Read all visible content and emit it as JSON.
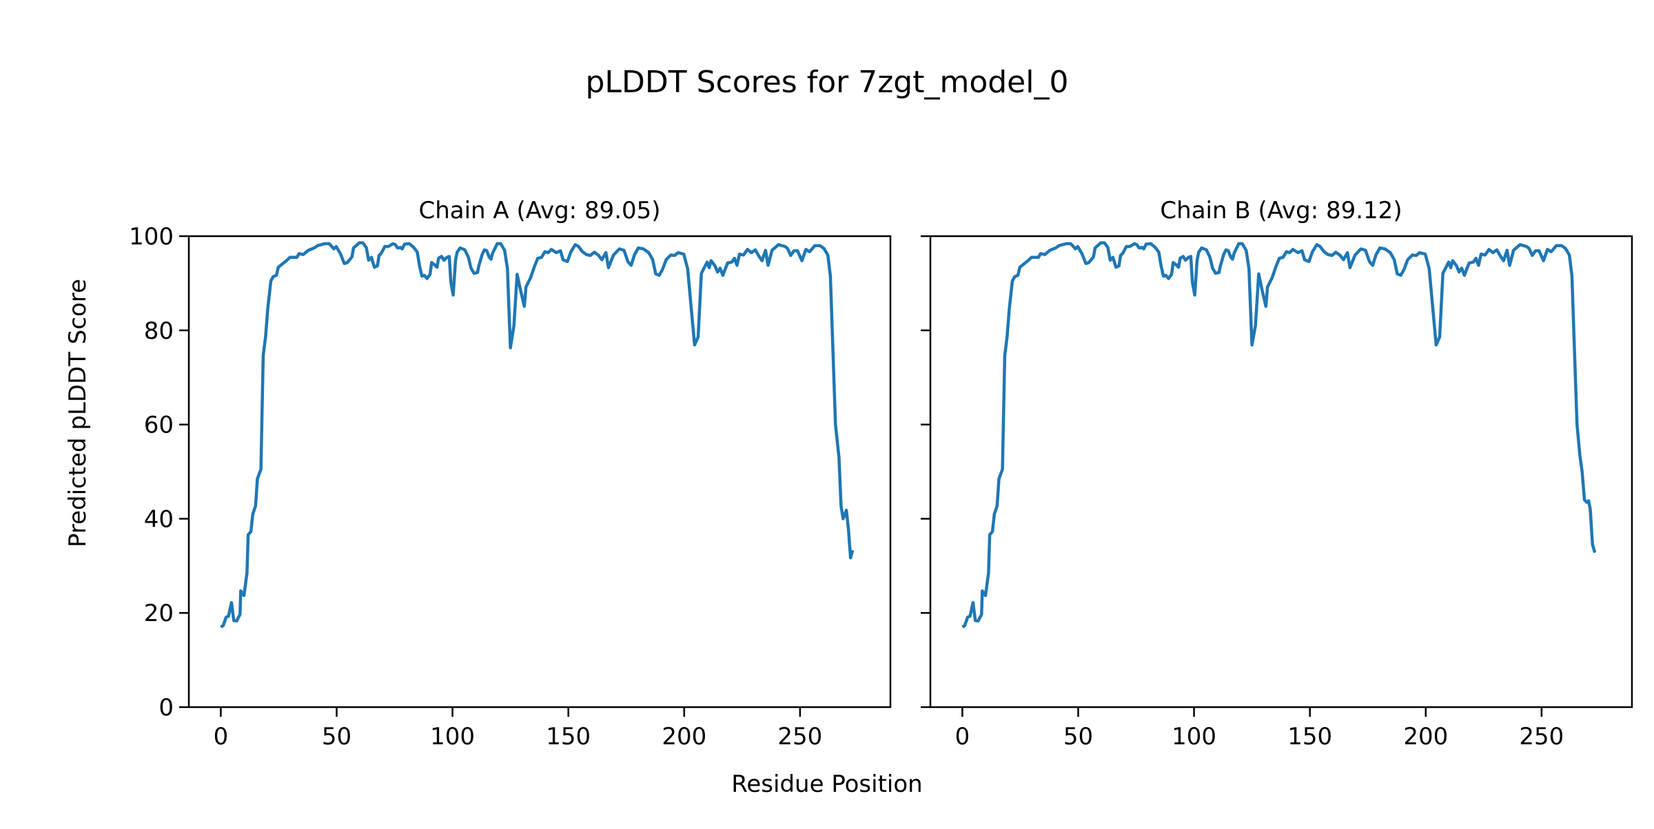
{
  "chart_data": {
    "type": "line",
    "title": "pLDDT Scores for 7zgt_model_0",
    "xlabel": "Residue Position",
    "ylabel": "Predicted pLDDT Score",
    "ylim": [
      0,
      100
    ],
    "xlim": [
      -13.8,
      289
    ],
    "xticks": [
      "0",
      "50",
      "100",
      "150",
      "200",
      "250"
    ],
    "yticks": [
      "0",
      "20",
      "40",
      "60",
      "80",
      "100"
    ],
    "shared_y": true,
    "grid": false,
    "line_color": "#1f77b4",
    "panels": [
      {
        "title": "Chain A (Avg: 89.05)",
        "x": [
          0,
          1,
          2.3,
          3.3,
          4.6,
          5.6,
          6.8,
          8.3,
          8.6,
          10,
          11.3,
          11.8,
          13,
          13.8,
          15,
          15.8,
          17.3,
          18.3,
          19.3,
          20.3,
          21.6,
          22.6,
          24,
          24.8,
          26.8,
          28.6,
          29.8,
          32.8,
          33.8,
          35.6,
          37.8,
          40.3,
          41.8,
          44.8,
          46.8,
          48.8,
          49.8,
          51.6,
          53.3,
          54.6,
          56.6,
          57.3,
          59.8,
          61.3,
          62.8,
          63.8,
          65,
          66.3,
          67.6,
          68.3,
          69.3,
          70.8,
          72.3,
          74.3,
          75.3,
          76.3,
          77.6,
          78.3,
          79.3,
          81.3,
          83.3,
          84.8,
          85.8,
          86.8,
          87.8,
          89,
          90.3,
          91,
          92.3,
          93.3,
          94,
          95.3,
          96.3,
          97.6,
          98.6,
          99.3,
          100.3,
          101.3,
          102,
          103.3,
          105.3,
          106.8,
          108,
          109.3,
          110.8,
          111.3,
          112.8,
          113.8,
          114.8,
          115.8,
          116.6,
          117.3,
          119.3,
          120.8,
          122.5,
          123.7,
          125,
          126.5,
          127.9,
          129.3,
          131,
          131.7,
          133.7,
          135.4,
          136.8,
          138.4,
          139.9,
          141.3,
          142.7,
          144.8,
          146.6,
          147.7,
          149.6,
          151.1,
          153,
          154.4,
          156.1,
          157.8,
          159.5,
          161.2,
          162.9,
          164.5,
          166.2,
          167.3,
          169.5,
          172,
          174,
          175.7,
          177.1,
          178.5,
          180.2,
          182.4,
          184.7,
          186.4,
          187.7,
          189.2,
          190.6,
          192.2,
          194.2,
          195.9,
          197.4,
          199.8,
          201.5,
          203.2,
          204.5,
          206,
          207.4,
          209.9,
          210.8,
          211.6,
          213.3,
          214.4,
          215.5,
          216.7,
          218.7,
          220.6,
          221.7,
          222.8,
          223.9,
          225.6,
          227.3,
          229,
          230.7,
          232.3,
          233.6,
          235.1,
          236.2,
          237.9,
          240.7,
          243.5,
          244.6,
          246,
          247.4,
          248.9,
          250.8,
          252.5,
          254.1,
          256.4,
          258.6,
          260.3,
          262,
          263.1,
          263.7,
          265.3,
          266.8,
          267.7,
          268.6,
          270,
          270.9,
          271.8,
          272.7
        ],
        "y": [
          17.0,
          17.3,
          19.1,
          19.3,
          22.2,
          18.4,
          18.3,
          19.7,
          24.7,
          23.7,
          28.5,
          36.6,
          37.3,
          41,
          42.7,
          48.5,
          50.5,
          74.6,
          78.6,
          84.7,
          90.5,
          91.4,
          91.7,
          93.4,
          94.2,
          94.9,
          95.5,
          95.5,
          96.3,
          96.1,
          97,
          97.5,
          98,
          98.4,
          98.4,
          97.3,
          97.8,
          96.3,
          94.2,
          94.4,
          95.6,
          97.5,
          98.6,
          98.6,
          97.6,
          94.9,
          95.5,
          93.4,
          93.7,
          95.9,
          96.4,
          97.8,
          97.8,
          98.4,
          98.2,
          97.5,
          97.6,
          97.3,
          98.3,
          98.4,
          97.6,
          96.6,
          93.6,
          91.5,
          91.7,
          91,
          91.9,
          94.4,
          93.9,
          93.4,
          95.3,
          95.7,
          94.9,
          95.5,
          95.7,
          90.2,
          87.5,
          94.9,
          96.6,
          97.5,
          97.1,
          95.6,
          93.2,
          92.1,
          92.3,
          93.6,
          96.1,
          97.1,
          96.9,
          95.6,
          95.1,
          96.4,
          98.4,
          98.4,
          97,
          93.1,
          76.3,
          81,
          91.9,
          88.7,
          85.1,
          89.2,
          91.2,
          93.6,
          95.3,
          95.5,
          96.7,
          96.5,
          97.2,
          96.5,
          96.9,
          95,
          94.6,
          96.7,
          98.2,
          97.8,
          96.7,
          96.1,
          95.9,
          96.6,
          96,
          95,
          96.5,
          93.3,
          96,
          97.3,
          97,
          94.6,
          93.8,
          96,
          97.5,
          97.3,
          96.5,
          95,
          92,
          91.7,
          92.9,
          95,
          96,
          95.9,
          96.5,
          96.2,
          93.1,
          83.9,
          76.9,
          78.6,
          92.1,
          94.5,
          93.3,
          94.8,
          93.7,
          92.4,
          93.2,
          91.7,
          94.3,
          94.5,
          95.3,
          93.8,
          96.2,
          96,
          97.2,
          96.5,
          97.1,
          95.7,
          94.8,
          97,
          93.8,
          97,
          98.2,
          97.8,
          97.4,
          95.9,
          96.9,
          96.9,
          94.8,
          97.2,
          96.7,
          98,
          98,
          97.4,
          96,
          91.6,
          83,
          60,
          53,
          42.7,
          40,
          41.8,
          37.8,
          31.7,
          33.3
        ]
      },
      {
        "title": "Chain B (Avg: 89.12)",
        "x": [
          0,
          1,
          2.3,
          3.3,
          4.6,
          5.6,
          6.8,
          8.3,
          8.6,
          10,
          11.3,
          11.8,
          13,
          13.8,
          15,
          15.8,
          17.3,
          18.3,
          19.3,
          20.3,
          21.6,
          22.6,
          24,
          24.8,
          26.8,
          28.6,
          29.8,
          32.8,
          33.8,
          35.6,
          37.8,
          40.3,
          41.8,
          44.8,
          46.8,
          48.8,
          49.8,
          51.6,
          53.3,
          54.6,
          56.6,
          57.3,
          59.8,
          61.3,
          62.8,
          63.8,
          65,
          66.3,
          67.6,
          68.3,
          69.3,
          70.8,
          72.3,
          74.3,
          75.3,
          76.3,
          77.6,
          78.3,
          79.3,
          81.3,
          83.3,
          84.8,
          85.8,
          86.8,
          87.8,
          89,
          90.3,
          91,
          92.3,
          93.3,
          94,
          95.3,
          96.3,
          97.6,
          98.6,
          99.3,
          100.3,
          101.3,
          102,
          103.3,
          105.3,
          106.8,
          108,
          109.3,
          110.8,
          111.3,
          112.8,
          113.8,
          114.8,
          115.8,
          116.6,
          117.3,
          119.3,
          120.8,
          122.5,
          123.7,
          125,
          126.5,
          127.9,
          129.3,
          131,
          131.7,
          133.7,
          135.4,
          136.8,
          138.4,
          139.9,
          141.3,
          142.7,
          144.8,
          146.6,
          147.7,
          149.6,
          151.1,
          153,
          154.4,
          156.1,
          157.8,
          159.5,
          161.2,
          162.9,
          164.5,
          166.2,
          167.3,
          169.5,
          172,
          174,
          175.7,
          177.1,
          178.5,
          180.2,
          182.4,
          184.7,
          186.4,
          187.7,
          189.2,
          190.6,
          192.2,
          194.2,
          195.9,
          197.4,
          199.8,
          201.5,
          203.2,
          204.5,
          206,
          207.4,
          209.9,
          210.8,
          211.6,
          213.3,
          214.4,
          215.5,
          216.7,
          218.7,
          220.6,
          221.7,
          222.8,
          223.9,
          225.6,
          227.3,
          229,
          230.7,
          232.3,
          233.6,
          235.1,
          236.2,
          237.9,
          240.7,
          243.5,
          244.6,
          246,
          247.4,
          248.9,
          250.8,
          252.5,
          254.1,
          256.4,
          258.6,
          260.3,
          262,
          263.1,
          263.7,
          265.3,
          266.5,
          267.5,
          268.5,
          269.5,
          270.3,
          271,
          272,
          273
        ],
        "y": [
          17.0,
          17.3,
          19.1,
          19.3,
          22.2,
          18.4,
          18.3,
          19.7,
          24.7,
          23.7,
          28.5,
          36.6,
          37.3,
          41,
          42.7,
          48.5,
          50.5,
          74.6,
          78.6,
          84.7,
          90.5,
          91.4,
          91.7,
          93.4,
          94.2,
          94.9,
          95.5,
          95.5,
          96.3,
          96.1,
          97,
          97.5,
          98,
          98.4,
          98.4,
          97.3,
          97.8,
          96.3,
          94.2,
          94.4,
          95.6,
          97.5,
          98.6,
          98.6,
          97.6,
          94.9,
          95.5,
          93.4,
          93.7,
          95.9,
          96.4,
          97.8,
          97.8,
          98.4,
          98.2,
          97.5,
          97.6,
          97.3,
          98.3,
          98.4,
          97.6,
          96.6,
          93.6,
          91.5,
          91.7,
          91,
          91.9,
          94.4,
          93.9,
          93.4,
          95.3,
          95.7,
          94.9,
          95.5,
          95.7,
          90.2,
          87.5,
          94.9,
          96.6,
          97.5,
          97.1,
          95.6,
          93.2,
          92.1,
          92.3,
          93.6,
          96.1,
          97.1,
          96.9,
          95.6,
          95.1,
          96.4,
          98.4,
          98.4,
          97,
          93.1,
          76.9,
          81,
          92,
          88.7,
          85.1,
          89.2,
          91.2,
          93.6,
          95.3,
          95.5,
          96.7,
          96.5,
          97.2,
          96.5,
          96.9,
          95,
          94.6,
          96.7,
          98.2,
          97.8,
          96.7,
          96.1,
          95.9,
          96.6,
          96,
          95,
          96.5,
          93.3,
          96,
          97.3,
          97,
          94.6,
          93.8,
          96,
          97.5,
          97.3,
          96.5,
          95,
          92,
          91.7,
          92.9,
          95,
          96,
          95.9,
          96.5,
          96.2,
          93.1,
          83.9,
          76.9,
          78.6,
          92.1,
          94.5,
          93.3,
          94.8,
          93.7,
          92.4,
          93.2,
          91.7,
          94.3,
          94.5,
          95.3,
          93.8,
          96.2,
          96,
          97.2,
          96.5,
          97.1,
          95.7,
          94.8,
          97,
          93.8,
          97,
          98.2,
          97.8,
          97.4,
          95.9,
          96.9,
          96.9,
          94.8,
          97.2,
          96.7,
          98,
          98,
          97.4,
          96,
          91.6,
          83,
          60,
          53.5,
          50,
          44,
          43.5,
          43.8,
          42,
          34.5,
          32.8
        ]
      }
    ]
  }
}
